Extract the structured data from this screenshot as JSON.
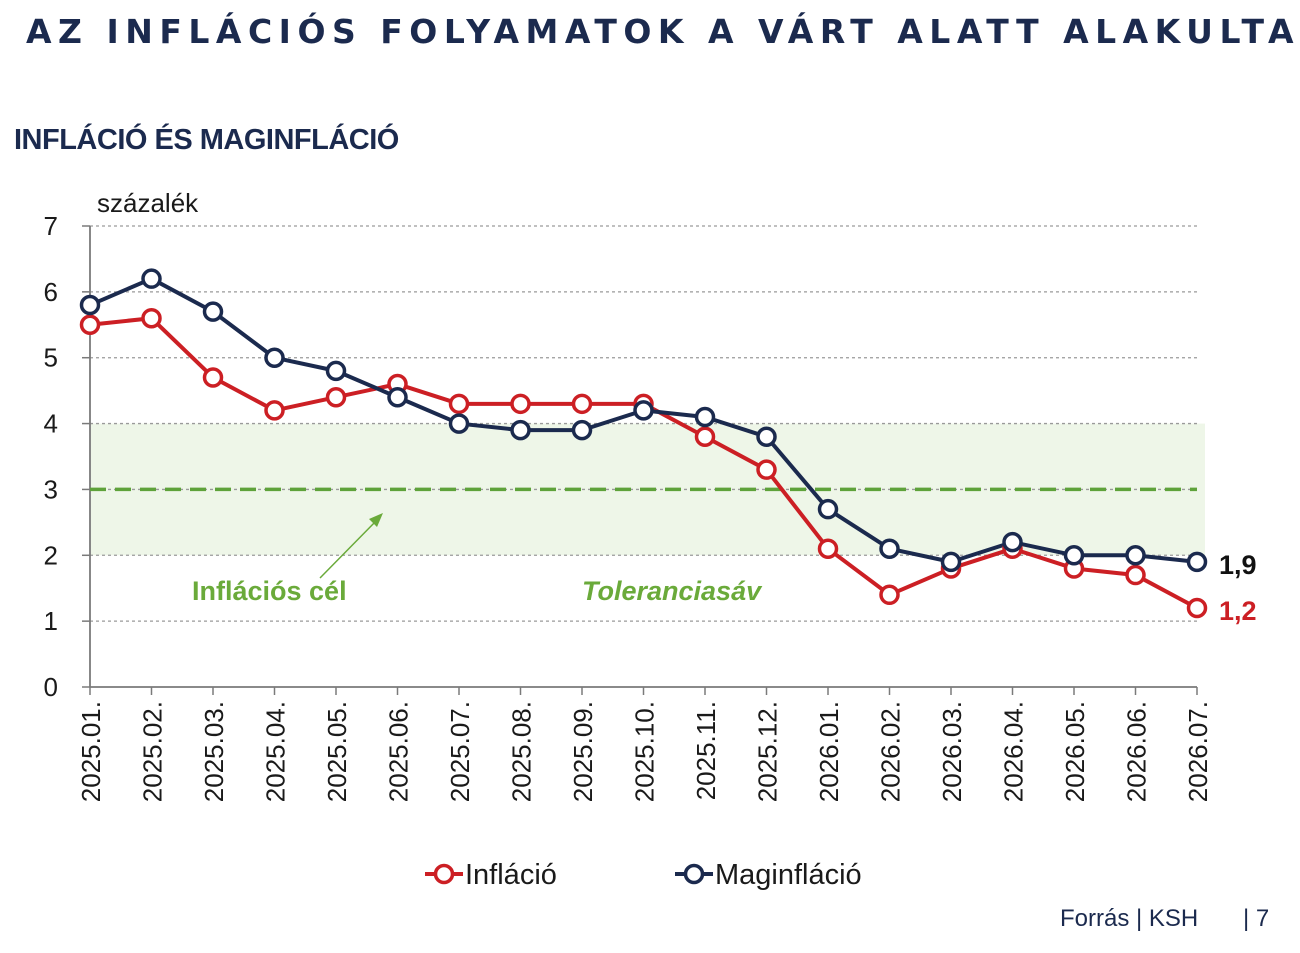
{
  "title": "AZ INFLÁCIÓS FOLYAMATOK A VÁRT ALATT ALAKULTAK",
  "subtitle": "INFLÁCIÓ ÉS MAGINFLÁCIÓ",
  "footer": {
    "source": "Forrás | KSH",
    "page": "| 7"
  },
  "chart_data": {
    "type": "line",
    "ylabel": "százalék",
    "ylim": [
      0,
      7
    ],
    "yticks": [
      "0",
      "1",
      "2",
      "3",
      "4",
      "5",
      "6",
      "7"
    ],
    "grid": true,
    "categories": [
      "2025.01.",
      "2025.02.",
      "2025.03.",
      "2025.04.",
      "2025.05.",
      "2025.06.",
      "2025.07.",
      "2025.08.",
      "2025.09.",
      "2025.10.",
      "2025.11.",
      "2025.12.",
      "2026.01.",
      "2026.02.",
      "2026.03.",
      "2026.04.",
      "2026.05.",
      "2026.06.",
      "2026.07."
    ],
    "series": [
      {
        "name": "Infláció",
        "color": "#cc1f24",
        "values": [
          5.5,
          5.6,
          4.7,
          4.2,
          4.4,
          4.6,
          4.3,
          4.3,
          4.3,
          4.3,
          3.8,
          3.3,
          2.1,
          1.4,
          1.8,
          2.1,
          1.8,
          1.7,
          1.2
        ],
        "end_label": "1,2"
      },
      {
        "name": "Maginfláció",
        "color": "#1b2a4e",
        "values": [
          5.8,
          6.2,
          5.7,
          5.0,
          4.8,
          4.4,
          4.0,
          3.9,
          3.9,
          4.2,
          4.1,
          3.8,
          2.7,
          2.1,
          1.9,
          2.2,
          2.0,
          2.0,
          1.9
        ],
        "end_label": "1,9"
      }
    ],
    "target": {
      "value": 3,
      "label": "Inflációs cél",
      "color": "#5ea23a"
    },
    "tolerance_band": {
      "range": [
        2,
        4
      ],
      "label": "Toleranciasáv",
      "color": "#eef6e8"
    },
    "legend": "bottom"
  }
}
